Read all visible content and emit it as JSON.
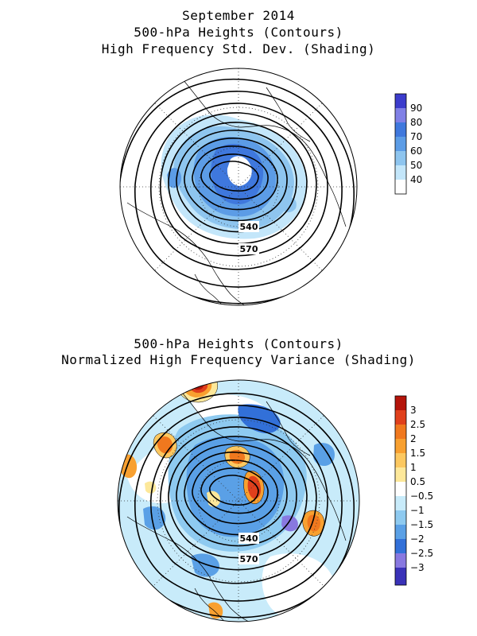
{
  "panel1": {
    "titles": [
      "September 2014",
      "500-hPa Heights (Contours)",
      "High Frequency Std. Dev. (Shading)"
    ],
    "contour_labels": [
      "540",
      "570"
    ],
    "colorbar": {
      "labels": [
        "90",
        "80",
        "70",
        "60",
        "50",
        "40"
      ],
      "colors": [
        "#3c3ccc",
        "#8080e6",
        "#3f78dd",
        "#5c9ce6",
        "#8ec5ef",
        "#c3e6fa",
        "#ffffff"
      ]
    }
  },
  "panel2": {
    "titles": [
      "500-hPa Heights (Contours)",
      "Normalized High Frequency Variance (Shading)"
    ],
    "contour_labels": [
      "540",
      "570"
    ],
    "colorbar": {
      "labels": [
        "3",
        "2.5",
        "2",
        "1.5",
        "1",
        "0.5",
        "−0.5",
        "−1",
        "−1.5",
        "−2",
        "−2.5",
        "−3"
      ],
      "colors": [
        "#b4140a",
        "#e0401c",
        "#f0781e",
        "#f8a030",
        "#fcc860",
        "#fde89a",
        "#ffffff",
        "#c8ebfa",
        "#8ecaf0",
        "#5aa0e6",
        "#3270d8",
        "#8878e0",
        "#3a32b8"
      ]
    }
  }
}
